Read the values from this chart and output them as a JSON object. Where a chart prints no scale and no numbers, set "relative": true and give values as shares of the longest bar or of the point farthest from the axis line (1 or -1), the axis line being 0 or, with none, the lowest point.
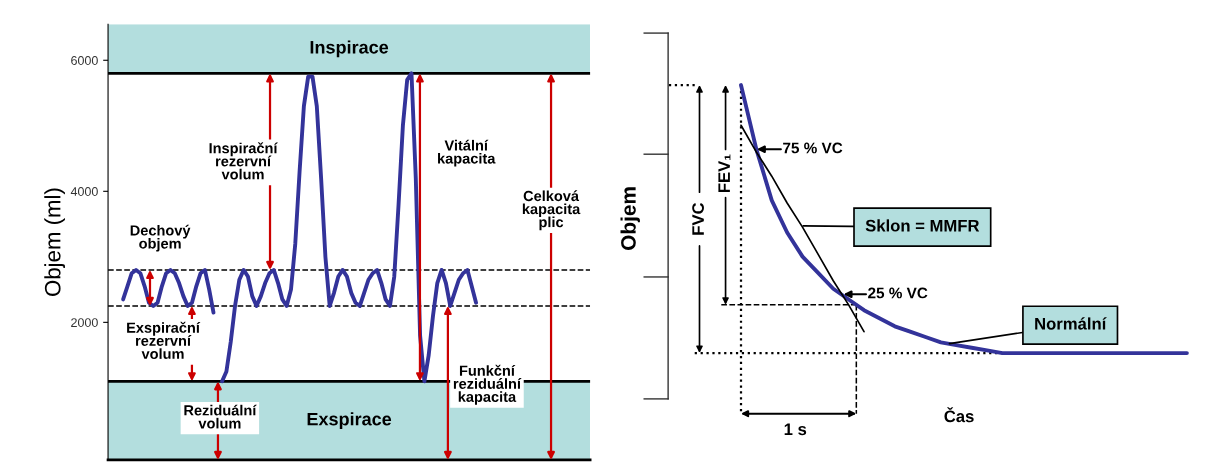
{
  "chart_data": [
    {
      "type": "line",
      "ylabel": "Objem (ml)",
      "categories": [
        null,
        null,
        null,
        null,
        null,
        null,
        null,
        null,
        null,
        null,
        null,
        null,
        null,
        null,
        null,
        null,
        null,
        null,
        null,
        null,
        null,
        null,
        null,
        null,
        null,
        null,
        null,
        null,
        null,
        null,
        null,
        null,
        null,
        null,
        null,
        null,
        null,
        null,
        null,
        null,
        null,
        null,
        null,
        null,
        null,
        null,
        null,
        null,
        null,
        null,
        null,
        null,
        null,
        null,
        null,
        null,
        null,
        null,
        null,
        null,
        null,
        null,
        null,
        null,
        null,
        null,
        null,
        null,
        null,
        null,
        null,
        null,
        null,
        null,
        null,
        null,
        null,
        null,
        null,
        null,
        null,
        null,
        null,
        null,
        null,
        null,
        null,
        null,
        null,
        null,
        null,
        null,
        null,
        null,
        null,
        null,
        null,
        null,
        null,
        null,
        null,
        null,
        null,
        null,
        null,
        null,
        null,
        null,
        null,
        null,
        null,
        null
      ],
      "series": [
        {
          "color": "#33339a",
          "values": [
            null,
            null,
            null,
            2350,
            2550,
            2750,
            2800,
            2750,
            2550,
            2300,
            2250,
            2300,
            2550,
            2750,
            2800,
            2750,
            2600,
            2400,
            2250,
            2300,
            2550,
            2750,
            2800,
            2500,
            2150,
            null,
            null,
            null,
            null,
            null,
            null,
            null,
            null,
            null,
            null,
            null,
            null,
            null,
            null,
            null,
            null,
            null,
            null,
            null,
            null,
            null,
            null,
            null,
            null,
            null,
            null,
            null,
            null,
            null,
            null,
            null,
            null,
            null,
            null,
            null,
            null,
            null,
            null,
            null,
            null,
            null,
            null,
            null,
            null,
            null,
            null,
            null,
            null,
            null,
            null,
            null,
            null,
            null,
            null,
            null,
            null,
            null,
            null,
            null,
            null,
            null,
            null,
            null,
            null,
            null,
            null,
            null,
            null,
            null,
            null,
            null,
            null,
            null,
            null,
            null,
            null,
            null,
            null,
            null,
            null,
            null,
            null,
            null,
            null,
            null,
            null,
            null
          ]
        },
        {
          "color": "#33339a",
          "values": [
            null,
            null,
            null,
            null,
            null,
            null,
            null,
            null,
            null,
            null,
            null,
            null,
            null,
            null,
            null,
            null,
            null,
            null,
            null,
            null,
            null,
            null,
            null,
            null,
            null,
            null,
            1100,
            1250,
            1700,
            2250,
            2650,
            2800,
            2700,
            2400,
            2250,
            2400,
            2600,
            2750,
            2800,
            2600,
            2350,
            2250,
            2500,
            3200,
            4300,
            5300,
            5750,
            5750,
            5300,
            4200,
            3000,
            2250,
            2450,
            2700,
            2800,
            2700,
            2450,
            2300,
            2250,
            2450,
            2650,
            2750,
            2800,
            2600,
            2350,
            2250,
            2700,
            3800,
            5000,
            5700,
            5800,
            4200,
            1800,
            1100,
            1500,
            2100,
            2600,
            2800,
            2600,
            2250,
            2450,
            2650,
            2750,
            2800,
            2550,
            2300,
            null,
            null,
            null,
            null,
            null,
            null,
            null,
            null,
            null,
            null,
            null,
            null,
            null,
            null,
            null,
            null,
            null,
            null,
            null,
            null,
            null,
            null,
            null,
            null,
            null,
            null
          ]
        }
      ],
      "ylim": [
        -100,
        6550
      ],
      "yticks": [
        2000,
        4000,
        6000
      ],
      "tick_labels": "y",
      "bands": [
        {
          "axis": "y",
          "from": 5800,
          "to": 6550,
          "label": "Inspirace",
          "color": "#b3dede"
        },
        {
          "axis": "y",
          "from": -100,
          "to": 1100,
          "label": "Exspirace",
          "color": "#b3dede"
        }
      ],
      "ref_lines": [
        {
          "axis": "y",
          "value": 5800,
          "color": "#000000",
          "line_style": "solid"
        },
        {
          "axis": "y",
          "value": 2800,
          "color": "#000000",
          "line_style": "dashed"
        },
        {
          "axis": "y",
          "value": 2250,
          "color": "#000000",
          "line_style": "dashed"
        },
        {
          "axis": "y",
          "value": 1100,
          "color": "#000000",
          "line_style": "solid"
        }
      ],
      "annotations": [
        "Dechový\nobjem",
        "Exspirační\nrezervní\nvolum",
        "Inspirační\nrezervní\nvolum",
        "Reziduální\nvolum",
        "Vitální\nkapacita",
        "Funkční\nreziduální\nkapacita",
        "Celková\nkapacita\nplic"
      ]
    },
    {
      "type": "line",
      "relative": true,
      "ylabel": "Objem",
      "xlabel": "Čas",
      "categories": [
        null,
        null,
        null,
        null,
        null,
        null,
        null,
        null,
        null,
        null,
        null,
        null,
        null,
        null,
        null,
        null,
        null,
        null,
        null,
        null,
        null,
        null,
        null,
        null,
        null,
        null,
        null,
        null,
        null,
        null
      ],
      "series": [
        {
          "color": "#33339a",
          "values": [
            1,
            0.76,
            0.57,
            0.45,
            0.36,
            0.3,
            0.24,
            0.2,
            0.16,
            0.13,
            0.1,
            0.08,
            0.06,
            0.04,
            0.03,
            0.02,
            0.01,
            0,
            0,
            0,
            0,
            0,
            0,
            0,
            0,
            0,
            0,
            0,
            0,
            0
          ]
        },
        {
          "color": "#000000",
          "values": [
            0.85,
            0.75,
            0.66,
            0.56,
            0.47,
            0.37,
            0.27,
            0.18,
            0.08,
            null,
            null,
            null,
            null,
            null,
            null,
            null,
            null,
            null,
            null,
            null,
            null,
            null,
            null,
            null,
            null,
            null,
            null,
            null,
            null,
            null
          ]
        }
      ],
      "annotations": [
        "75 % VC",
        "25 % VC",
        "Sklon = MMFR",
        "Normální",
        "FVC",
        "FEV₁",
        "1 s"
      ]
    }
  ]
}
